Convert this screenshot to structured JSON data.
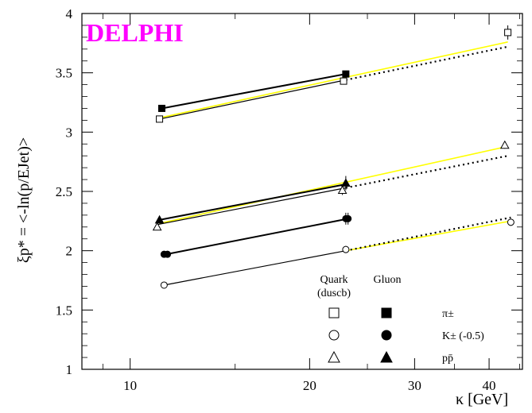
{
  "chart_data": {
    "type": "scatter",
    "title": "DELPHI",
    "title_color": "#ff00ff",
    "xlabel": "κ [GeV]",
    "ylabel": "ξp* = <-ln(p/EJet)>",
    "x_scale": "log",
    "xlim": [
      8.3,
      45.5
    ],
    "ylim": [
      1,
      4
    ],
    "x_ticks": [
      10,
      20,
      30,
      40
    ],
    "y_ticks": [
      1,
      1.5,
      2,
      2.5,
      3,
      3.5,
      4
    ],
    "y_tick_labels": [
      "1",
      "1.5",
      "2",
      "2.5",
      "3",
      "3.5",
      "4"
    ],
    "legend": {
      "placement": "bottom-right",
      "header_quark": "Quark",
      "header_quark_sub": "(duscb)",
      "header_gluon": "Gluon",
      "rows": [
        {
          "symbol_open": "square",
          "symbol_filled": "square",
          "label": "π±"
        },
        {
          "symbol_open": "circle",
          "symbol_filled": "circle",
          "label": "K±  (-0.5)"
        },
        {
          "symbol_open": "triangle",
          "symbol_filled": "triangle",
          "label": "pp̄"
        }
      ]
    },
    "series": [
      {
        "particle": "pi",
        "flavor": "quark",
        "marker": "square",
        "filled": false,
        "x": [
          11.2,
          22.8,
          43.0
        ],
        "y": [
          3.11,
          3.43,
          3.84
        ],
        "yerr": [
          0.01,
          0.02,
          0.06
        ]
      },
      {
        "particle": "pi",
        "flavor": "gluon",
        "marker": "square",
        "filled": true,
        "x": [
          11.3,
          23.0
        ],
        "y": [
          3.2,
          3.49
        ],
        "yerr": [
          0.01,
          0.02
        ]
      },
      {
        "particle": "K",
        "flavor": "quark",
        "marker": "circle",
        "filled": false,
        "x": [
          11.4,
          23.0,
          43.5
        ],
        "y": [
          1.71,
          2.01,
          2.24
        ],
        "yerr": [
          0.01,
          0.03,
          0.03
        ]
      },
      {
        "particle": "K",
        "flavor": "gluon",
        "marker": "circle",
        "filled": true,
        "x": [
          11.4,
          11.55,
          23.0,
          23.2
        ],
        "y": [
          1.97,
          1.97,
          2.27,
          2.27
        ],
        "yerr": [
          0.01,
          0.01,
          0.05,
          0.05
        ]
      },
      {
        "particle": "p",
        "flavor": "quark",
        "marker": "triangle",
        "filled": false,
        "x": [
          11.1,
          22.7,
          42.5
        ],
        "y": [
          2.2,
          2.51,
          2.89
        ],
        "yerr": [
          0.01,
          0.04,
          0.03
        ]
      },
      {
        "particle": "p",
        "flavor": "gluon",
        "marker": "triangle",
        "filled": true,
        "x": [
          11.2,
          23.0
        ],
        "y": [
          2.26,
          2.57
        ],
        "yerr": [
          0.01,
          0.06
        ]
      }
    ],
    "lines": [
      {
        "kind": "gluon-fit",
        "style": "solid",
        "color": "#000000",
        "x": [
          11.3,
          23.0
        ],
        "y": [
          3.2,
          3.49
        ]
      },
      {
        "kind": "quark-fit",
        "style": "solid",
        "color": "#000000",
        "x": [
          11.2,
          23.0
        ],
        "y": [
          3.11,
          3.44
        ]
      },
      {
        "kind": "quark-fit-yellow",
        "style": "solid",
        "color": "#ffff00",
        "x": [
          11.2,
          43.0
        ],
        "y": [
          3.12,
          3.76
        ]
      },
      {
        "kind": "quark-extrap",
        "style": "dotted",
        "color": "#000000",
        "x": [
          23.0,
          43.0
        ],
        "y": [
          3.44,
          3.72
        ]
      },
      {
        "kind": "gluon-fit",
        "style": "solid",
        "color": "#000000",
        "x": [
          11.2,
          23.0
        ],
        "y": [
          2.26,
          2.56
        ]
      },
      {
        "kind": "quark-fit",
        "style": "solid",
        "color": "#000000",
        "x": [
          11.1,
          23.0
        ],
        "y": [
          2.22,
          2.53
        ]
      },
      {
        "kind": "quark-fit-yellow",
        "style": "solid",
        "color": "#ffff00",
        "x": [
          11.2,
          43.0
        ],
        "y": [
          2.23,
          2.88
        ]
      },
      {
        "kind": "quark-extrap",
        "style": "dotted",
        "color": "#000000",
        "x": [
          23.0,
          43.0
        ],
        "y": [
          2.53,
          2.8
        ]
      },
      {
        "kind": "gluon-fit",
        "style": "solid",
        "color": "#000000",
        "x": [
          11.5,
          23.2
        ],
        "y": [
          1.97,
          2.27
        ]
      },
      {
        "kind": "quark-fit",
        "style": "solid",
        "color": "#000000",
        "x": [
          11.4,
          23.0
        ],
        "y": [
          1.71,
          2.0
        ]
      },
      {
        "kind": "quark-fit-yellow",
        "style": "solid",
        "color": "#ffff00",
        "x": [
          23.0,
          43.5
        ],
        "y": [
          2.0,
          2.25
        ]
      },
      {
        "kind": "quark-extrap",
        "style": "dotted",
        "color": "#000000",
        "x": [
          23.0,
          43.5
        ],
        "y": [
          2.0,
          2.28
        ]
      }
    ]
  }
}
